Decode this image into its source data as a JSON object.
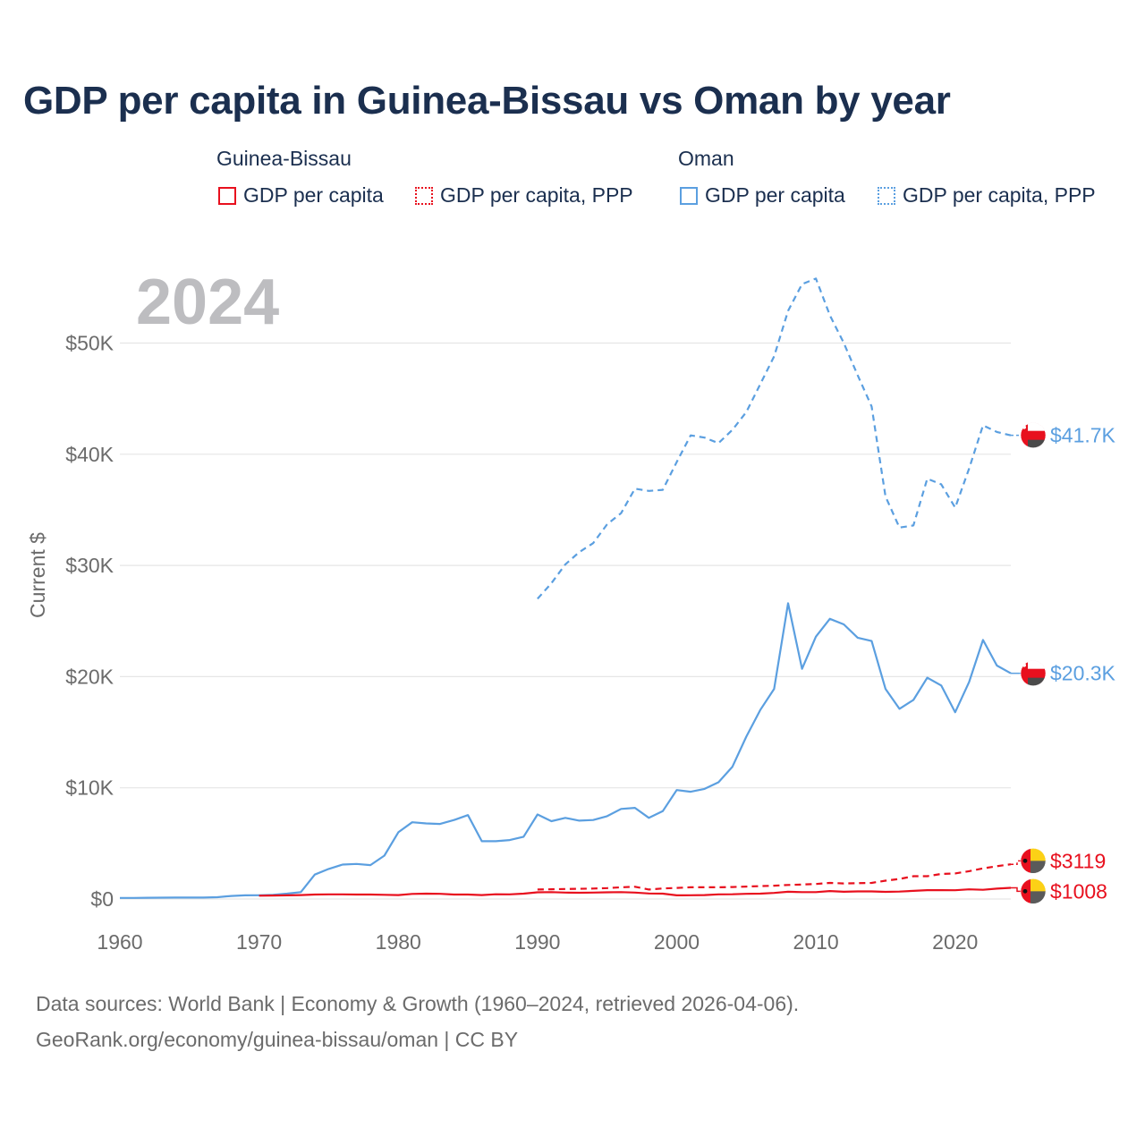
{
  "title": "GDP per capita in Guinea-Bissau vs Oman by year",
  "legend": {
    "groups": [
      {
        "name": "Guinea-Bissau",
        "items": [
          "GDP per capita",
          "GDP per capita, PPP"
        ],
        "color": "#e8101e"
      },
      {
        "name": "Oman",
        "items": [
          "GDP per capita",
          "GDP per capita, PPP"
        ],
        "color": "#5b9fe0"
      }
    ]
  },
  "footer": {
    "line1": "Data sources: World Bank | Economy & Growth (1960–2024, retrieved 2026-04-06).",
    "line2": "GeoRank.org/economy/guinea-bissau/oman | CC BY"
  },
  "chart_data": {
    "type": "line",
    "year_label": "2024",
    "ylabel": "Current $",
    "xlim": [
      1960,
      2024
    ],
    "ylim": [
      0,
      56000
    ],
    "x_ticks": [
      1960,
      1970,
      1980,
      1990,
      2000,
      2010,
      2020
    ],
    "y_ticks": [
      0,
      10000,
      20000,
      30000,
      40000,
      50000
    ],
    "y_tick_labels": [
      "$0",
      "$10K",
      "$20K",
      "$30K",
      "$40K",
      "$50K"
    ],
    "series": [
      {
        "name": "Oman GDP per capita, PPP",
        "country": "Oman",
        "dashed": true,
        "color": "#5b9fe0",
        "end_label": "$41.7K",
        "x": [
          1990,
          1991,
          1992,
          1993,
          1994,
          1995,
          1996,
          1997,
          1998,
          1999,
          2000,
          2001,
          2002,
          2003,
          2004,
          2005,
          2006,
          2007,
          2008,
          2009,
          2010,
          2011,
          2012,
          2013,
          2014,
          2015,
          2016,
          2017,
          2018,
          2019,
          2020,
          2021,
          2022,
          2023,
          2024
        ],
        "values": [
          27000,
          28400,
          30100,
          31200,
          32000,
          33700,
          34700,
          36900,
          36700,
          36800,
          39300,
          41700,
          41500,
          41000,
          42200,
          43800,
          46300,
          48800,
          52900,
          55300,
          55800,
          52500,
          50000,
          47100,
          44300,
          36200,
          33400,
          33600,
          37800,
          37300,
          35200,
          38700,
          42600,
          42000,
          41700
        ]
      },
      {
        "name": "Oman GDP per capita",
        "country": "Oman",
        "dashed": false,
        "color": "#5b9fe0",
        "end_label": "$20.3K",
        "x": [
          1960,
          1961,
          1962,
          1963,
          1964,
          1965,
          1966,
          1967,
          1968,
          1969,
          1970,
          1971,
          1972,
          1973,
          1974,
          1975,
          1976,
          1977,
          1978,
          1979,
          1980,
          1981,
          1982,
          1983,
          1984,
          1985,
          1986,
          1987,
          1988,
          1989,
          1990,
          1991,
          1992,
          1993,
          1994,
          1995,
          1996,
          1997,
          1998,
          1999,
          2000,
          2001,
          2002,
          2003,
          2004,
          2005,
          2006,
          2007,
          2008,
          2009,
          2010,
          2011,
          2012,
          2013,
          2014,
          2015,
          2016,
          2017,
          2018,
          2019,
          2020,
          2021,
          2022,
          2023,
          2024
        ],
        "values": [
          100,
          100,
          110,
          120,
          130,
          130,
          130,
          160,
          270,
          330,
          340,
          380,
          480,
          620,
          2200,
          2700,
          3100,
          3150,
          3050,
          3900,
          6000,
          6900,
          6800,
          6750,
          7100,
          7550,
          5200,
          5200,
          5300,
          5600,
          7600,
          7000,
          7300,
          7050,
          7100,
          7450,
          8100,
          8200,
          7300,
          7900,
          9800,
          9650,
          9900,
          10500,
          11900,
          14600,
          17000,
          18900,
          26600,
          20700,
          23600,
          25200,
          24700,
          23500,
          23200,
          18900,
          17100,
          17900,
          19900,
          19200,
          16800,
          19500,
          23300,
          21000,
          20300
        ]
      },
      {
        "name": "Guinea-Bissau GDP per capita, PPP",
        "country": "Guinea-Bissau",
        "dashed": true,
        "color": "#e8101e",
        "end_label": "$3119",
        "x": [
          1990,
          1991,
          1992,
          1993,
          1994,
          1995,
          1996,
          1997,
          1998,
          1999,
          2000,
          2001,
          2002,
          2003,
          2004,
          2005,
          2006,
          2007,
          2008,
          2009,
          2010,
          2011,
          2012,
          2013,
          2014,
          2015,
          2016,
          2017,
          2018,
          2019,
          2020,
          2021,
          2022,
          2023,
          2024
        ],
        "values": [
          850,
          880,
          900,
          920,
          940,
          980,
          1050,
          1100,
          850,
          950,
          1000,
          1050,
          1050,
          1050,
          1080,
          1120,
          1160,
          1200,
          1260,
          1300,
          1350,
          1450,
          1400,
          1420,
          1450,
          1650,
          1800,
          2050,
          2050,
          2250,
          2300,
          2500,
          2750,
          2950,
          3119
        ]
      },
      {
        "name": "Guinea-Bissau GDP per capita",
        "country": "Guinea-Bissau",
        "dashed": false,
        "color": "#e8101e",
        "end_label": "$1008",
        "x": [
          1970,
          1971,
          1972,
          1973,
          1974,
          1975,
          1976,
          1977,
          1978,
          1979,
          1980,
          1981,
          1982,
          1983,
          1984,
          1985,
          1986,
          1987,
          1988,
          1989,
          1990,
          1991,
          1992,
          1993,
          1994,
          1995,
          1996,
          1997,
          1998,
          1999,
          2000,
          2001,
          2002,
          2003,
          2004,
          2005,
          2006,
          2007,
          2008,
          2009,
          2010,
          2011,
          2012,
          2013,
          2014,
          2015,
          2016,
          2017,
          2018,
          2019,
          2020,
          2021,
          2022,
          2023,
          2024
        ],
        "values": [
          300,
          310,
          330,
          350,
          400,
          420,
          420,
          400,
          400,
          380,
          350,
          460,
          480,
          470,
          400,
          400,
          350,
          430,
          420,
          480,
          600,
          620,
          580,
          560,
          580,
          600,
          620,
          580,
          500,
          480,
          330,
          340,
          350,
          420,
          430,
          470,
          480,
          550,
          650,
          620,
          620,
          720,
          650,
          680,
          680,
          640,
          670,
          730,
          800,
          800,
          790,
          870,
          830,
          930,
          1008
        ]
      }
    ]
  }
}
